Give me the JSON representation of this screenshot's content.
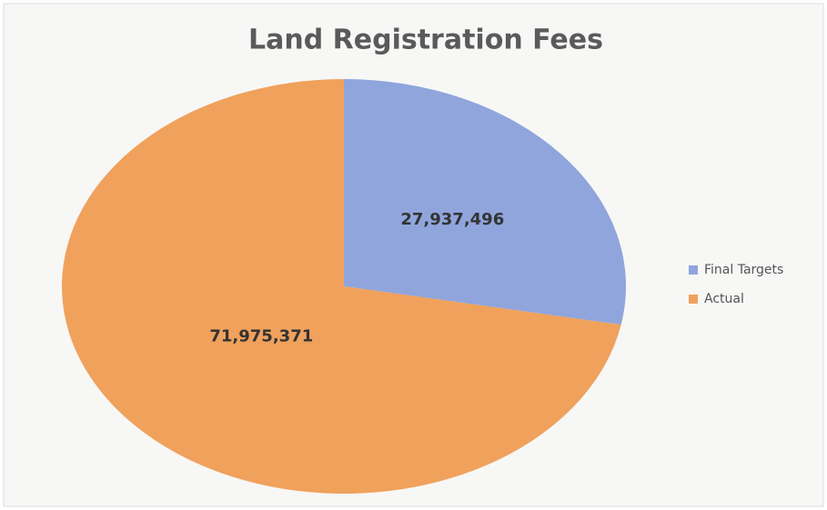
{
  "chart_data": {
    "type": "pie",
    "title": "Land Registration Fees",
    "categories": [
      "Final Targets",
      "Actual"
    ],
    "values": [
      27937496,
      71975371
    ],
    "value_labels": [
      "27,937,496",
      "71,975,371"
    ],
    "colors": [
      "#8fa5dc",
      "#f0a15c"
    ],
    "legend": "right"
  }
}
